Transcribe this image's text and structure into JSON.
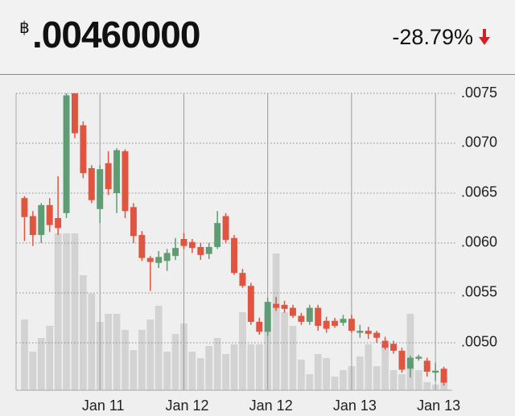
{
  "header": {
    "currency": "฿",
    "price": ".00460000",
    "change": "-28.79%"
  },
  "chart_data": {
    "type": "candlestick",
    "x": [
      0,
      1,
      2,
      3,
      4,
      5,
      6,
      7,
      8,
      9,
      10,
      11,
      12,
      13,
      14,
      15,
      16,
      17,
      18,
      19,
      20,
      21,
      22,
      23,
      24,
      25,
      26,
      27,
      28,
      29,
      30,
      31,
      32,
      33,
      34,
      35,
      36,
      37,
      38,
      39,
      40,
      41,
      42,
      43,
      44,
      45,
      46,
      47,
      48,
      49,
      50
    ],
    "open": [
      0.00645,
      0.00627,
      0.00608,
      0.00638,
      0.00625,
      0.0063,
      0.0075,
      0.00718,
      0.00675,
      0.00634,
      0.0068,
      0.0065,
      0.00692,
      0.00636,
      0.00608,
      0.00585,
      0.0058,
      0.00582,
      0.00587,
      0.00604,
      0.00601,
      0.00596,
      0.00589,
      0.00596,
      0.00627,
      0.00605,
      0.0057,
      0.00557,
      0.00521,
      0.00511,
      0.00539,
      0.00538,
      0.00535,
      0.00527,
      0.00521,
      0.00535,
      0.00522,
      0.00522,
      0.0052,
      0.00524,
      0.0051,
      0.00512,
      0.0051,
      0.00502,
      0.00499,
      0.00492,
      0.00474,
      0.00484,
      0.00482,
      0.0047,
      0.00474
    ],
    "high": [
      0.00647,
      0.00632,
      0.0064,
      0.00645,
      0.00667,
      0.0075,
      0.0075,
      0.00722,
      0.00678,
      0.00678,
      0.00692,
      0.00695,
      0.00694,
      0.0064,
      0.00612,
      0.00587,
      0.00592,
      0.00594,
      0.00605,
      0.0061,
      0.00604,
      0.006,
      0.006,
      0.00632,
      0.0063,
      0.00608,
      0.00574,
      0.0056,
      0.00525,
      0.00545,
      0.00546,
      0.00542,
      0.00538,
      0.0053,
      0.00538,
      0.00538,
      0.00526,
      0.00525,
      0.00528,
      0.00528,
      0.00518,
      0.00516,
      0.00512,
      0.00506,
      0.00502,
      0.00495,
      0.00487,
      0.00488,
      0.00485,
      0.0048,
      0.00476
    ],
    "low": [
      0.00602,
      0.00597,
      0.006,
      0.00611,
      0.00608,
      0.00625,
      0.00705,
      0.00665,
      0.0064,
      0.0062,
      0.00648,
      0.0063,
      0.00625,
      0.006,
      0.00582,
      0.00552,
      0.00575,
      0.00572,
      0.00583,
      0.00594,
      0.0059,
      0.00583,
      0.00584,
      0.00594,
      0.006,
      0.00568,
      0.00555,
      0.00518,
      0.00508,
      0.00507,
      0.00532,
      0.0053,
      0.00525,
      0.00518,
      0.00518,
      0.00512,
      0.0051,
      0.00515,
      0.00517,
      0.0051,
      0.00505,
      0.00504,
      0.005,
      0.00493,
      0.00489,
      0.0047,
      0.00465,
      0.00482,
      0.00466,
      0.00462,
      0.00457
    ],
    "close": [
      0.00626,
      0.00608,
      0.00638,
      0.00618,
      0.00615,
      0.00748,
      0.0071,
      0.0067,
      0.00643,
      0.00674,
      0.00654,
      0.00693,
      0.00632,
      0.00607,
      0.00585,
      0.00581,
      0.00586,
      0.0059,
      0.00595,
      0.00597,
      0.00595,
      0.00588,
      0.00596,
      0.0062,
      0.00603,
      0.0057,
      0.00557,
      0.00521,
      0.00511,
      0.00541,
      0.00535,
      0.00534,
      0.00527,
      0.00521,
      0.00535,
      0.00517,
      0.00514,
      0.00517,
      0.00524,
      0.00512,
      0.00512,
      0.00509,
      0.00505,
      0.00495,
      0.00492,
      0.00473,
      0.00485,
      0.00486,
      0.00471,
      0.00472,
      0.0046
    ],
    "volume": [
      88,
      48,
      65,
      80,
      195,
      195,
      195,
      143,
      120,
      85,
      95,
      95,
      75,
      50,
      75,
      88,
      105,
      48,
      70,
      83,
      48,
      40,
      55,
      65,
      45,
      57,
      97,
      57,
      57,
      98,
      170,
      97,
      80,
      38,
      20,
      45,
      40,
      17,
      25,
      30,
      42,
      57,
      30,
      58,
      25,
      20,
      95,
      25,
      10,
      7,
      15
    ],
    "up_color": "#5e9c73",
    "down_color": "#e05540",
    "volume_color": "#d3d3d3",
    "xlim": [
      -1,
      51
    ],
    "xticks": [
      {
        "value": 9,
        "label": "Jan 11"
      },
      {
        "value": 19,
        "label": "Jan 12"
      },
      {
        "value": 29,
        "label": "Jan 12"
      },
      {
        "value": 39,
        "label": "Jan 13"
      },
      {
        "value": 49,
        "label": "Jan 13"
      }
    ],
    "ylim": [
      0.004524,
      0.0075
    ],
    "yticks": [
      {
        "value": 0.0075,
        "label": ".0075"
      },
      {
        "value": 0.007,
        "label": ".0070"
      },
      {
        "value": 0.0065,
        "label": ".0065"
      },
      {
        "value": 0.006,
        "label": ".0060"
      },
      {
        "value": 0.0055,
        "label": ".0055"
      },
      {
        "value": 0.005,
        "label": ".0050"
      }
    ],
    "grid": true
  }
}
